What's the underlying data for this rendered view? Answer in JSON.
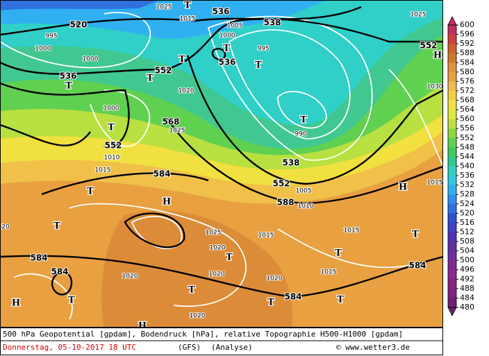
{
  "map": {
    "labels": [
      "520",
      "536",
      "538",
      "552",
      "536",
      "552",
      "536",
      "568",
      "552",
      "584",
      "538",
      "552",
      "588",
      "584",
      "584",
      "584",
      "584",
      "1025",
      "1015",
      "1005",
      "1000",
      "995",
      "995",
      "1000",
      "1000",
      "1020",
      "1000",
      "1025",
      "1010",
      "1015",
      "990",
      "1030",
      "1025",
      "1015",
      "1010",
      "1005",
      "1015",
      "1015",
      "1025",
      "1020",
      "1020",
      "1020",
      "1020",
      "1015",
      "1020",
      "20"
    ],
    "markers": [
      "T",
      "T",
      "T",
      "T",
      "T",
      "T",
      "T",
      "T",
      "T",
      "T",
      "T",
      "T",
      "T",
      "T",
      "T",
      "T",
      "T",
      "H",
      "H",
      "H",
      "H",
      "H"
    ]
  },
  "legend": {
    "labels": [
      600,
      596,
      592,
      588,
      584,
      580,
      576,
      572,
      568,
      564,
      560,
      556,
      552,
      548,
      544,
      540,
      536,
      532,
      528,
      524,
      520,
      516,
      512,
      508,
      504,
      500,
      496,
      492,
      488,
      484,
      480
    ],
    "colors": [
      "#c03060",
      "#d04040",
      "#d06030",
      "#d07830",
      "#e09040",
      "#e8a040",
      "#f0b850",
      "#f0d040",
      "#f0e040",
      "#e0e840",
      "#c0e040",
      "#90d840",
      "#60d050",
      "#40c860",
      "#30c890",
      "#30d0c0",
      "#30c8e0",
      "#30b0f0",
      "#3090f0",
      "#3070e0",
      "#3050d0",
      "#4040c0",
      "#5030b0",
      "#6030a0",
      "#7030a0",
      "#802890",
      "#902890",
      "#8a2080",
      "#802080",
      "#702070"
    ]
  },
  "footer": {
    "line1": "500 hPa Geopotential [gpdam], Bodendruck [hPa], relative Topographie H500-H1000 [gpdam]",
    "date": "Donnerstag, 05-10-2017  18 UTC",
    "model": "(GFS)",
    "run": "(Analyse)",
    "credit": "© www.wetter3.de"
  }
}
